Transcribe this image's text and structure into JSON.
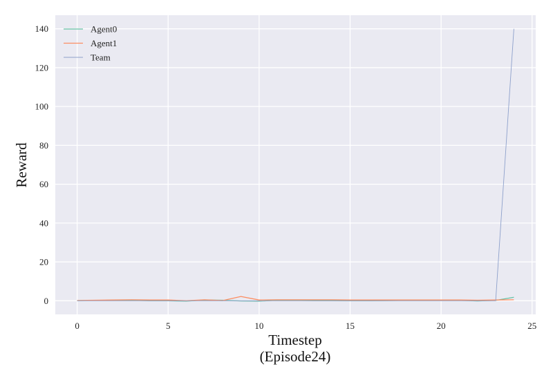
{
  "chart_data": {
    "type": "line",
    "title": "",
    "xlabel": "Timestep",
    "xlabel_sub": "(Episode24)",
    "ylabel": "Reward",
    "xlim": [
      -1.2,
      25.2
    ],
    "ylim": [
      -7,
      147
    ],
    "xticks": [
      0,
      5,
      10,
      15,
      20,
      25
    ],
    "yticks": [
      0,
      20,
      40,
      60,
      80,
      100,
      120,
      140
    ],
    "grid": true,
    "legend_position": "top-left",
    "x": [
      0,
      1,
      2,
      3,
      4,
      5,
      6,
      7,
      8,
      9,
      10,
      11,
      12,
      13,
      14,
      15,
      16,
      17,
      18,
      19,
      20,
      21,
      22,
      23,
      24
    ],
    "series": [
      {
        "name": "Agent0",
        "color": "#66c2a5",
        "values": [
          0.1,
          0.2,
          0.3,
          0.3,
          0,
          0,
          -0.2,
          0.4,
          0.3,
          -0.1,
          -0.2,
          0.3,
          0.2,
          0.1,
          0.1,
          0,
          0,
          0.1,
          0.2,
          0.2,
          0.3,
          0.2,
          -0.1,
          0.2,
          1.8
        ]
      },
      {
        "name": "Agent1",
        "color": "#fc8d62",
        "values": [
          0.1,
          0.3,
          0.4,
          0.5,
          0.4,
          0.4,
          0,
          0.5,
          0.1,
          2.2,
          0.4,
          0.5,
          0.5,
          0.5,
          0.5,
          0.4,
          0.4,
          0.4,
          0.4,
          0.4,
          0.4,
          0.4,
          0.3,
          0.4,
          0.5
        ]
      },
      {
        "name": "Team",
        "color": "#8da0cb",
        "values": [
          0,
          0,
          0,
          0,
          0,
          0,
          0,
          0,
          0,
          0,
          0,
          0,
          0,
          0,
          0,
          0,
          0,
          0,
          0,
          0,
          0,
          0,
          0,
          0,
          140
        ]
      }
    ]
  }
}
